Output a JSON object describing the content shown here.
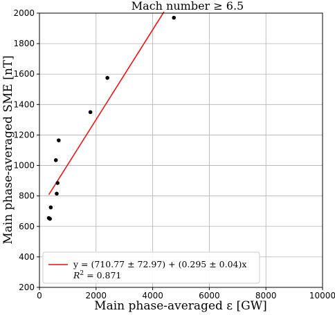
{
  "chart_data": {
    "type": "scatter",
    "title": "Mach number ≥ 6.5",
    "xlabel": "Main phase-averaged ε [GW]",
    "ylabel": "Main phase-averaged SME [nT]",
    "xlim": [
      0,
      10000
    ],
    "ylim": [
      200,
      2000
    ],
    "x_ticks": [
      "0",
      "2000",
      "4000",
      "6000",
      "8000",
      "10000"
    ],
    "y_ticks": [
      "200",
      "400",
      "600",
      "800",
      "1000",
      "1200",
      "1400",
      "1600",
      "1800",
      "2000"
    ],
    "grid": true,
    "points": [
      {
        "x": 330,
        "y": 655
      },
      {
        "x": 370,
        "y": 650
      },
      {
        "x": 400,
        "y": 725
      },
      {
        "x": 580,
        "y": 1035
      },
      {
        "x": 610,
        "y": 815
      },
      {
        "x": 640,
        "y": 885
      },
      {
        "x": 680,
        "y": 1165
      },
      {
        "x": 1800,
        "y": 1350
      },
      {
        "x": 2400,
        "y": 1575
      },
      {
        "x": 4750,
        "y": 1970
      }
    ],
    "fit_line": {
      "intercept": 710.77,
      "slope": 0.295,
      "x_range": [
        330,
        4400
      ],
      "color": "#ff0000"
    },
    "point_color": "#000000",
    "legend": {
      "placement": "bottom-left",
      "entry_label": "y = (710.77 ± 72.97) + (0.295 ± 0.04)x",
      "r2_symbol": "R",
      "r2_sup": "2",
      "r2_value": " = 0.871"
    }
  }
}
